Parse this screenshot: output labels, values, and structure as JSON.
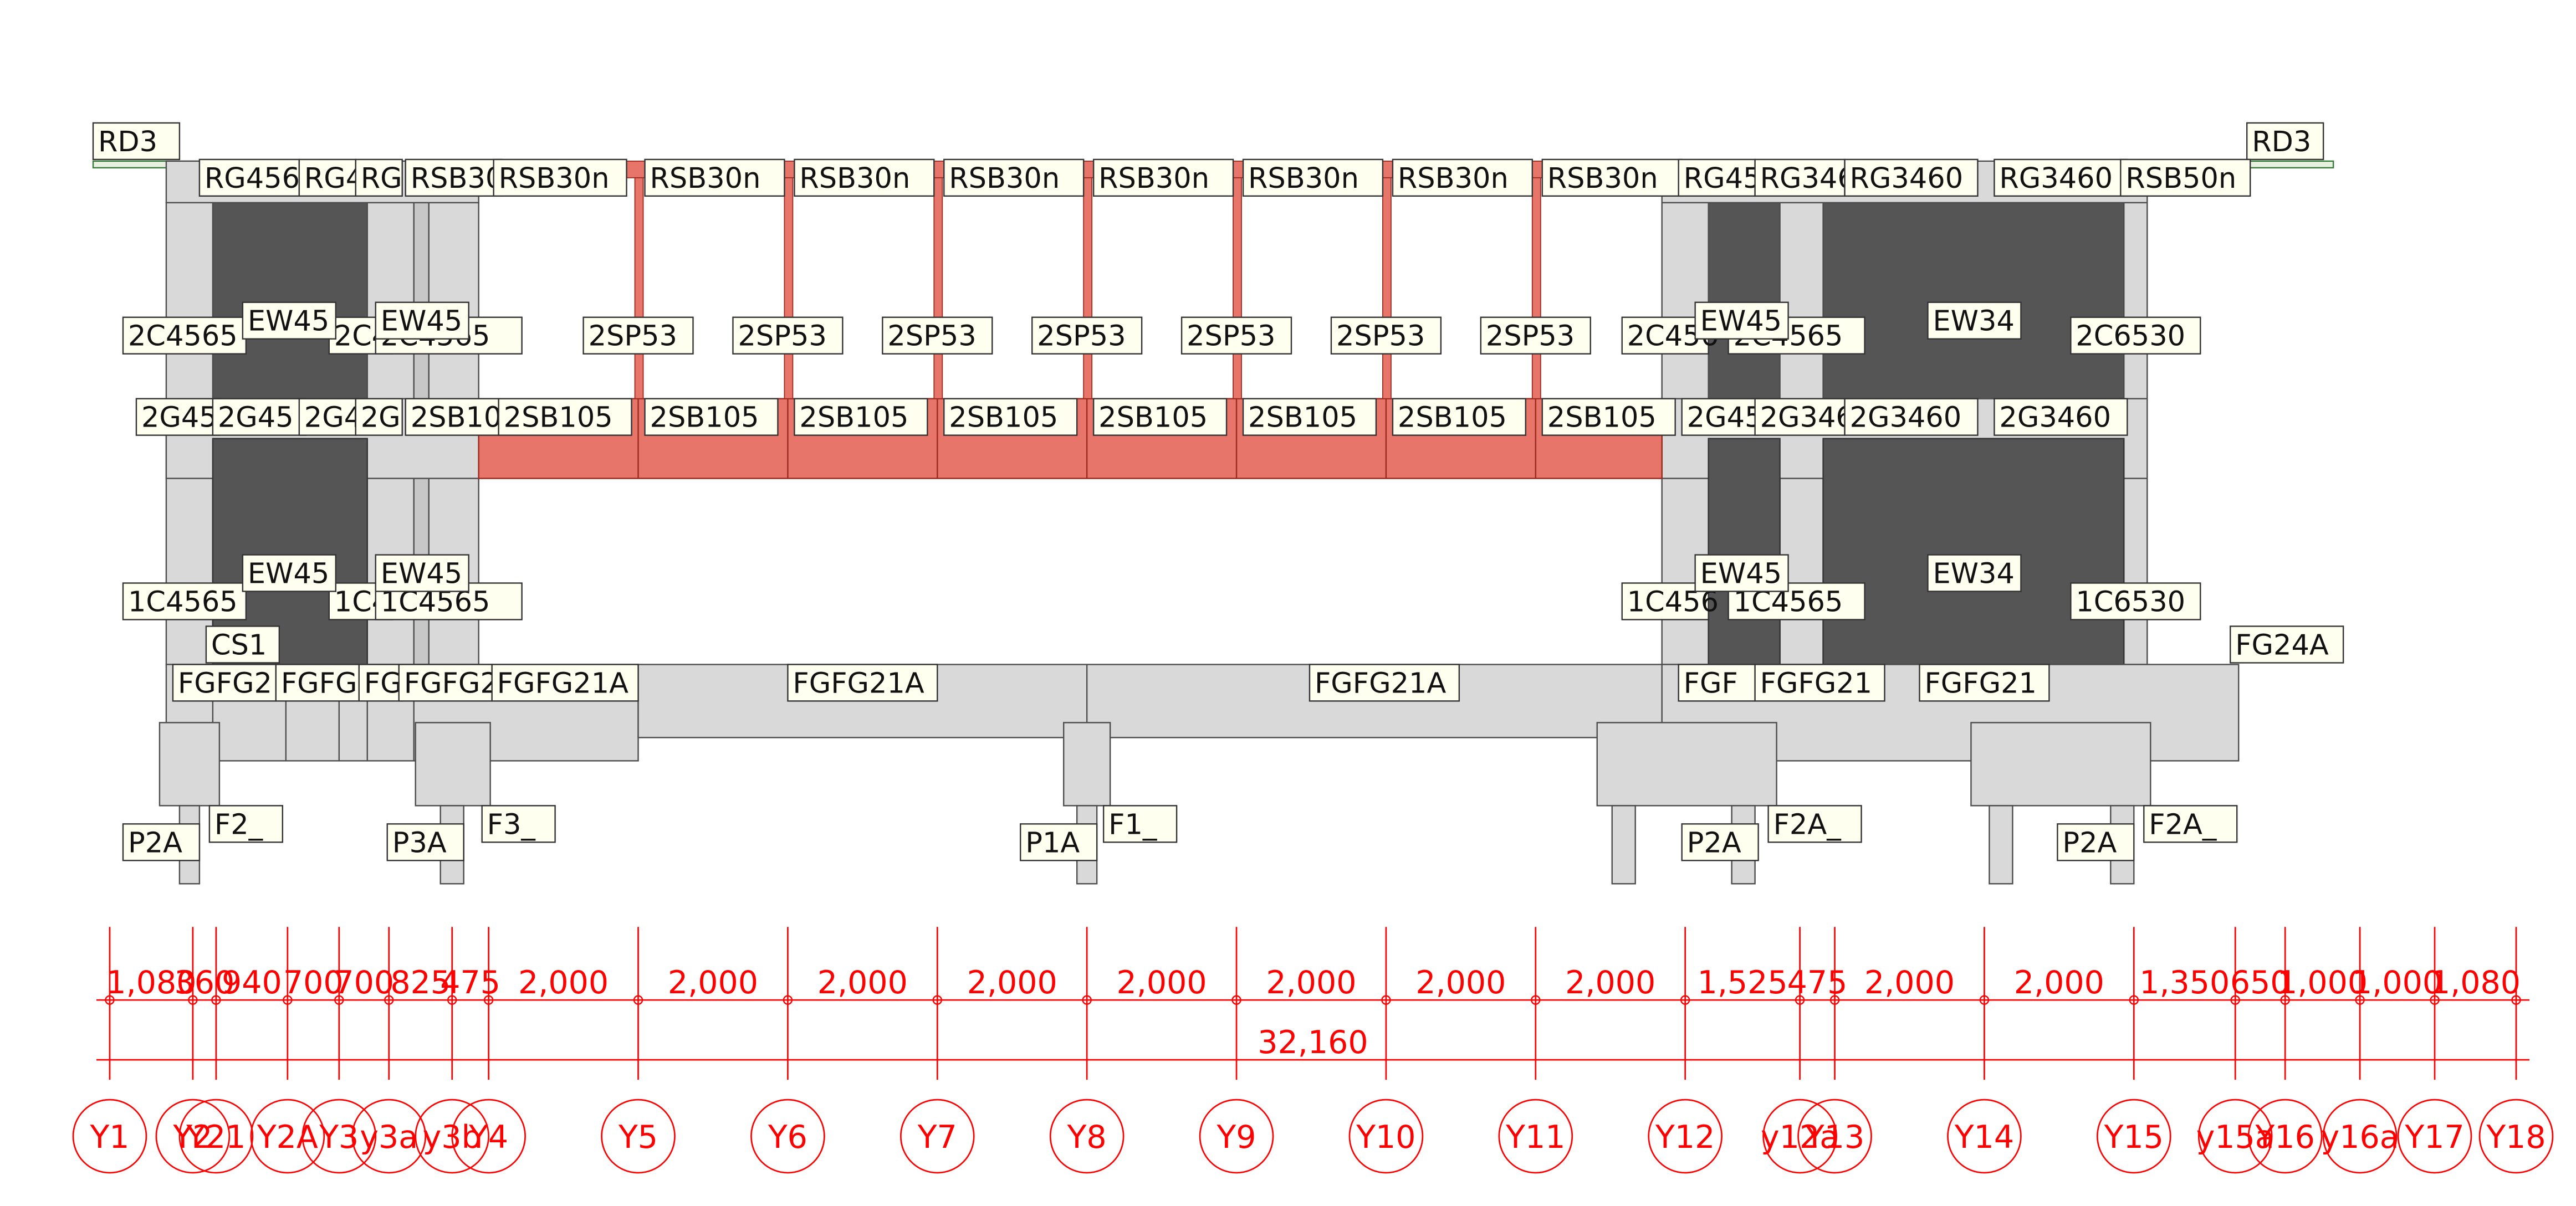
{
  "colors": {
    "concrete_fill": "#d9d9d9",
    "concrete_stroke": "#4d4d4d",
    "wall_fill": "#555555",
    "steel_fill": "#e8756a",
    "steel_stroke": "#9b2a20",
    "label_fill": "#fffff0",
    "label_stroke": "#333333",
    "dim_color": "#ff0000",
    "slab_fill": "#e8f0e0",
    "slab_stroke": "#3a7a3a"
  },
  "roof": {
    "left_label": "RD3",
    "right_label": "RD3"
  },
  "member_labels": {
    "roof_beams": [
      "RG456",
      "RG4",
      "RG",
      "RSB30",
      "RSB30n",
      "RSB30n",
      "RSB30n",
      "RSB30n",
      "RSB30n",
      "RSB30n",
      "RSB30n",
      "RSB30n",
      "RG45",
      "RG346",
      "RG3460",
      "RG3460",
      "RSB50n"
    ],
    "second_columns": [
      "2C4565",
      "2C4",
      "2C4565",
      "2C456",
      "2C4565",
      "2C6530"
    ],
    "second_walls": [
      "EW45",
      "EW45",
      "EW45",
      "EW34"
    ],
    "posts": [
      "2SP53",
      "2SP53",
      "2SP53",
      "2SP53",
      "2SP53",
      "2SP53",
      "2SP53"
    ],
    "second_beams": [
      "2G45",
      "2G45",
      "2G4",
      "2G",
      "2SB10",
      "2SB105",
      "2SB105",
      "2SB105",
      "2SB105",
      "2SB105",
      "2SB105",
      "2SB105",
      "2SB105",
      "2G45",
      "2G346",
      "2G3460",
      "2G3460"
    ],
    "first_columns": [
      "1C4565",
      "1C4",
      "1C4565",
      "1C456",
      "1C4565",
      "1C6530"
    ],
    "first_walls": [
      "EW45",
      "EW45",
      "EW45",
      "EW34"
    ],
    "stair_label": "CS1",
    "foundation_beams": [
      "FGFG2",
      "FGFG",
      "FG",
      "FGFG2",
      "FGFG21A",
      "FGFG21A",
      "FGFG21A",
      "FGF",
      "FGFG21",
      "FGFG21",
      "FG24A"
    ],
    "piles": [
      "P2A",
      "P3A",
      "P1A",
      "P2A",
      "P2A"
    ],
    "footings": [
      "F2_",
      "F3_",
      "F1_",
      "F2A_",
      "F2A_"
    ]
  },
  "dimensions": {
    "spans": [
      "1,080",
      "360",
      "940",
      "700",
      "700",
      "825",
      "475",
      "2,000",
      "2,000",
      "2,000",
      "2,000",
      "2,000",
      "2,000",
      "2,000",
      "2,000",
      "1,525",
      "475",
      "2,000",
      "2,000",
      "1,350",
      "650",
      "1,000",
      "1,000",
      "1,080"
    ],
    "total": "32,160"
  },
  "grid_axes": [
    "Y1",
    "Y2",
    "Y21",
    "Y2A",
    "Y3",
    "y3a",
    "y3b",
    "Y4",
    "Y5",
    "Y6",
    "Y7",
    "Y8",
    "Y9",
    "Y10",
    "Y11",
    "Y12",
    "y12a",
    "Y13",
    "Y14",
    "Y15",
    "y15a",
    "Y16",
    "y16a",
    "Y17",
    "Y18"
  ]
}
